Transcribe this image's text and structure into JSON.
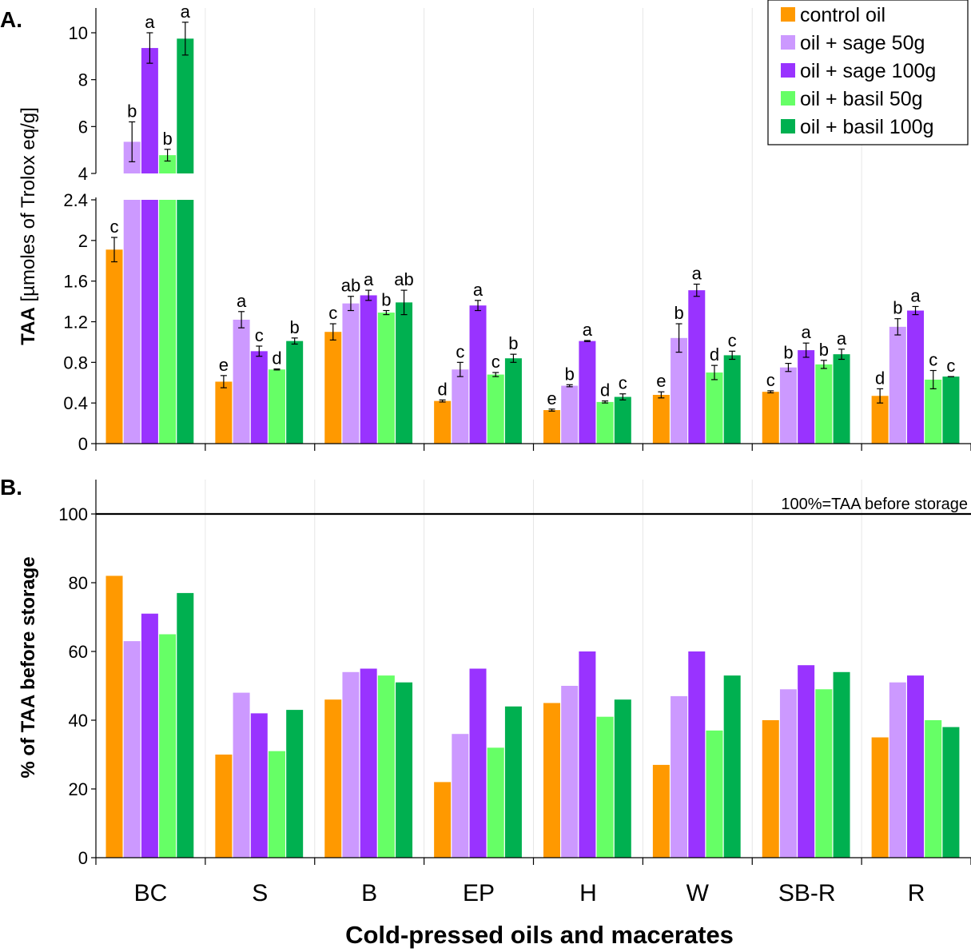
{
  "chart_data": [
    {
      "panel_label": "A.",
      "type": "bar",
      "title": "",
      "ylabel_bold": "TAA",
      "ylabel_rest": " [µmoles of Trolox eq/g]",
      "y_axis_break": true,
      "lower_ylim": [
        0,
        2.4
      ],
      "lower_ticks": [
        "0",
        "0.4",
        "0.8",
        "1.2",
        "1.6",
        "2",
        "2.4"
      ],
      "upper_ylim": [
        4,
        10.8
      ],
      "upper_ticks": [
        "4",
        "6",
        "8",
        "10"
      ],
      "categories": [
        "BC",
        "S",
        "B",
        "EP",
        "H",
        "W",
        "SB-R",
        "R"
      ],
      "series": [
        {
          "name": "control oil",
          "color": "#FF9900",
          "values": [
            1.91,
            0.61,
            1.1,
            0.42,
            0.33,
            0.48,
            0.51,
            0.47
          ],
          "errors": [
            0.12,
            0.06,
            0.08,
            0.01,
            0.01,
            0.03,
            0.01,
            0.07
          ],
          "letters": [
            "c",
            "e",
            "c",
            "d",
            "e",
            "e",
            "c",
            "d"
          ]
        },
        {
          "name": "oil + sage 50g",
          "color": "#CC99FF",
          "values": [
            5.35,
            1.22,
            1.38,
            0.73,
            0.57,
            1.04,
            0.75,
            1.15
          ],
          "errors": [
            0.85,
            0.08,
            0.07,
            0.07,
            0.01,
            0.14,
            0.04,
            0.08
          ],
          "letters": [
            "b",
            "a",
            "ab",
            "c",
            "b",
            "b",
            "b",
            "b"
          ]
        },
        {
          "name": "oil + sage 100g",
          "color": "#9933FF",
          "values": [
            9.35,
            0.91,
            1.46,
            1.36,
            1.01,
            1.51,
            0.92,
            1.31
          ],
          "errors": [
            0.65,
            0.05,
            0.05,
            0.05,
            0.005,
            0.06,
            0.07,
            0.04
          ],
          "letters": [
            "a",
            "c",
            "a",
            "a",
            "a",
            "a",
            "a",
            "a"
          ]
        },
        {
          "name": "oil + basil 50g",
          "color": "#66FF66",
          "values": [
            4.78,
            0.73,
            1.29,
            0.68,
            0.41,
            0.7,
            0.78,
            0.63
          ],
          "errors": [
            0.25,
            0.005,
            0.02,
            0.02,
            0.01,
            0.07,
            0.04,
            0.09
          ],
          "letters": [
            "b",
            "d",
            "b",
            "c",
            "d",
            "d",
            "b",
            "c"
          ]
        },
        {
          "name": "oil + basil 100g",
          "color": "#00B050",
          "values": [
            9.75,
            1.01,
            1.39,
            0.84,
            0.46,
            0.87,
            0.88,
            0.66
          ],
          "errors": [
            0.7,
            0.03,
            0.12,
            0.04,
            0.03,
            0.04,
            0.05,
            0.0
          ],
          "letters": [
            "a",
            "b",
            "ab",
            "b",
            "c",
            "c",
            "a",
            "c"
          ]
        }
      ]
    },
    {
      "panel_label": "B.",
      "type": "bar",
      "title": "",
      "ylabel": "% of TAA before storage",
      "ylim": [
        0,
        110
      ],
      "ticks": [
        "0",
        "20",
        "40",
        "60",
        "80",
        "100"
      ],
      "reference_line": {
        "value": 100,
        "label": "100%=TAA before storage"
      },
      "xlabel": "Cold-pressed oils and macerates",
      "categories": [
        "BC",
        "S",
        "B",
        "EP",
        "H",
        "W",
        "SB-R",
        "R"
      ],
      "series": [
        {
          "name": "control oil",
          "color": "#FF9900",
          "values": [
            82,
            30,
            46,
            22,
            45,
            27,
            40,
            35
          ]
        },
        {
          "name": "oil + sage 50g",
          "color": "#CC99FF",
          "values": [
            63,
            48,
            54,
            36,
            50,
            47,
            49,
            51
          ]
        },
        {
          "name": "oil + sage 100g",
          "color": "#9933FF",
          "values": [
            71,
            42,
            55,
            55,
            60,
            60,
            56,
            53
          ]
        },
        {
          "name": "oil + basil 50g",
          "color": "#66FF66",
          "values": [
            65,
            31,
            53,
            32,
            41,
            37,
            49,
            40
          ]
        },
        {
          "name": "oil + basil 100g",
          "color": "#00B050",
          "values": [
            77,
            43,
            51,
            44,
            46,
            53,
            54,
            38
          ]
        }
      ]
    }
  ]
}
